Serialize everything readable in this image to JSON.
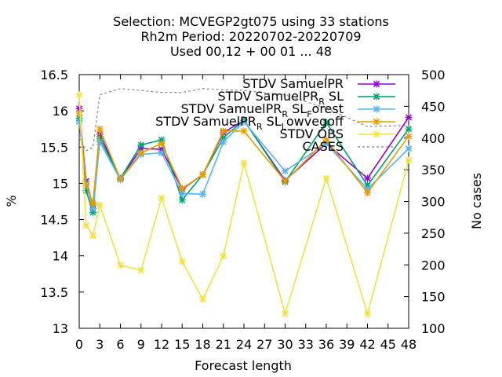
{
  "chart_data": {
    "type": "line",
    "title_lines": [
      "Selection: MCVEGP2gt075 using    33 stations",
      "Rh2m   Period: 20220702-20220709",
      "Used  00,12 + 00 01 ... 48"
    ],
    "xlabel": "Forecast length",
    "ylabel": "%",
    "y2label": "No cases",
    "x_ticks": [
      "0",
      "3",
      "6",
      "9",
      "12",
      "15",
      "18",
      "21",
      "24",
      "27",
      "30",
      "33",
      "36",
      "39",
      "42",
      "45",
      "48"
    ],
    "y_ticks": [
      "13",
      "13.5",
      "14",
      "14.5",
      "15",
      "15.5",
      "16",
      "16.5"
    ],
    "y2_ticks": [
      "100",
      "150",
      "200",
      "250",
      "300",
      "350",
      "400",
      "450",
      "500"
    ],
    "xlim": [
      0,
      48
    ],
    "ylim": [
      13,
      16.5
    ],
    "y2lim": [
      100,
      500
    ],
    "legend_position": "top-right",
    "x": [
      0,
      1,
      2,
      3,
      6,
      9,
      12,
      15,
      18,
      21,
      24,
      30,
      36,
      42,
      48
    ],
    "series": [
      {
        "name": "STDV SamuelPR",
        "color": "#9400d3",
        "marker": "x",
        "values": [
          16.03,
          15.03,
          14.7,
          15.68,
          15.06,
          15.48,
          15.47,
          14.92,
          15.12,
          15.7,
          15.87,
          15.04,
          15.55,
          15.07,
          15.91
        ]
      },
      {
        "name": "STDV SamuelPR_R SL",
        "color": "#009e73",
        "marker": "x",
        "values": [
          15.9,
          14.9,
          14.6,
          15.62,
          15.07,
          15.53,
          15.6,
          14.77,
          15.12,
          15.63,
          15.87,
          15.02,
          15.84,
          14.97,
          15.75
        ]
      },
      {
        "name": "STDV SamuelPR_R SL_Forest",
        "color": "#56b4e9",
        "marker": "x",
        "values": [
          15.85,
          15.0,
          14.65,
          15.57,
          15.05,
          15.4,
          15.42,
          14.86,
          14.85,
          15.57,
          15.85,
          15.17,
          15.55,
          14.92,
          15.48
        ]
      },
      {
        "name": "STDV SamuelPR_R SL_Lowvegoff",
        "color": "#e69f00",
        "marker": "x",
        "values": [
          15.97,
          14.98,
          14.73,
          15.75,
          15.06,
          15.42,
          15.55,
          14.93,
          15.12,
          15.72,
          15.72,
          15.03,
          15.6,
          14.87,
          15.65
        ]
      },
      {
        "name": "STDV OBS",
        "color": "#f0e442",
        "marker": "x",
        "values": [
          16.22,
          14.42,
          14.28,
          14.7,
          13.87,
          13.8,
          14.8,
          13.92,
          13.4,
          14.0,
          15.28,
          13.2,
          15.07,
          13.2,
          15.32
        ]
      },
      {
        "name": "CASES",
        "color": "#888888",
        "marker": "none",
        "dashed": true,
        "axis": "y2",
        "values": [
          400,
          380,
          385,
          468,
          478,
          475,
          472,
          472,
          478,
          476,
          475,
          468,
          447,
          418,
          420
        ]
      }
    ]
  }
}
